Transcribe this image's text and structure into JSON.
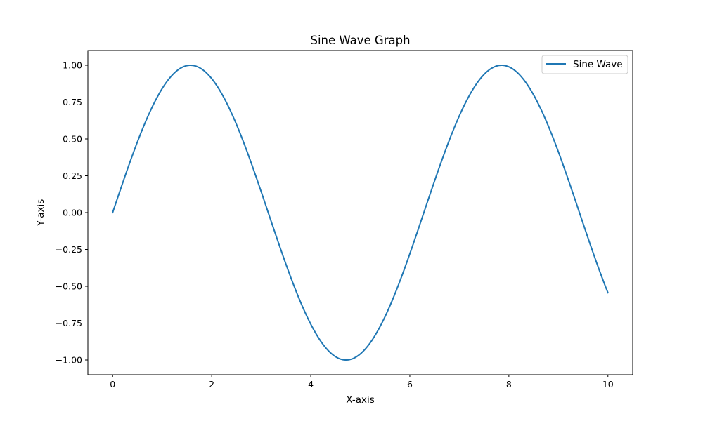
{
  "chart_data": {
    "type": "line",
    "title": "Sine Wave Graph",
    "xlabel": "X-axis",
    "ylabel": "Y-axis",
    "xlim": [
      -0.5,
      10.5
    ],
    "ylim": [
      -1.1,
      1.1
    ],
    "xticks": [
      0,
      2,
      4,
      6,
      8,
      10
    ],
    "xtick_labels": [
      "0",
      "2",
      "4",
      "6",
      "8",
      "10"
    ],
    "yticks": [
      -1.0,
      -0.75,
      -0.5,
      -0.25,
      0.0,
      0.25,
      0.5,
      0.75,
      1.0
    ],
    "ytick_labels": [
      "−1.00",
      "−0.75",
      "−0.50",
      "−0.25",
      "0.00",
      "0.25",
      "0.50",
      "0.75",
      "1.00"
    ],
    "grid": false,
    "legend_position": "top-right",
    "series": [
      {
        "name": "Sine Wave",
        "color": "#1f77b4",
        "function": "sin(x)",
        "x_range": [
          0,
          10
        ],
        "x": [
          0.0,
          0.25,
          0.5,
          0.75,
          1.0,
          1.25,
          1.5,
          1.75,
          2.0,
          2.25,
          2.5,
          2.75,
          3.0,
          3.25,
          3.5,
          3.75,
          4.0,
          4.25,
          4.5,
          4.75,
          5.0,
          5.25,
          5.5,
          5.75,
          6.0,
          6.25,
          6.5,
          6.75,
          7.0,
          7.25,
          7.5,
          7.75,
          8.0,
          8.25,
          8.5,
          8.75,
          9.0,
          9.25,
          9.5,
          9.75,
          10.0
        ],
        "y": [
          0.0,
          0.247,
          0.479,
          0.682,
          0.841,
          0.949,
          0.997,
          0.984,
          0.909,
          0.778,
          0.598,
          0.382,
          0.141,
          -0.108,
          -0.351,
          -0.572,
          -0.757,
          -0.895,
          -0.978,
          -0.999,
          -0.959,
          -0.859,
          -0.706,
          -0.508,
          -0.279,
          -0.033,
          0.215,
          0.451,
          0.657,
          0.823,
          0.938,
          0.995,
          0.989,
          0.923,
          0.798,
          0.624,
          0.412,
          0.174,
          -0.075,
          -0.319,
          -0.544
        ]
      }
    ]
  }
}
